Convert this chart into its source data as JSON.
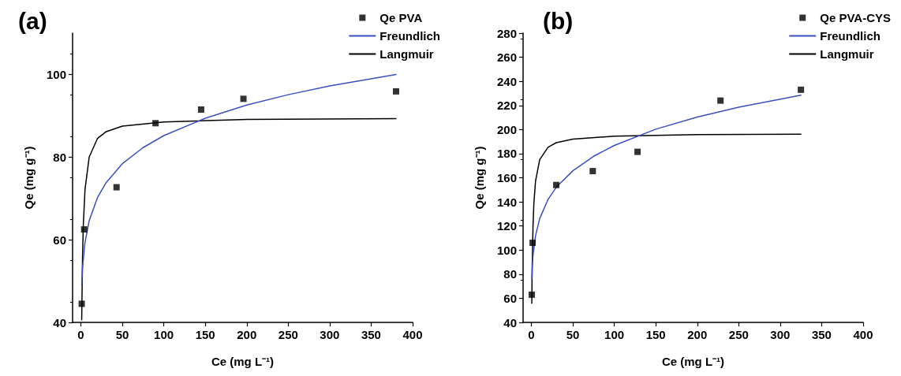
{
  "chart_data": [
    {
      "type": "scatter",
      "title": "(a)",
      "xlabel": "Ce (mg L⁻¹)",
      "ylabel": "Qe (mg g⁻¹)",
      "xlim": [
        -10,
        400
      ],
      "xticks": [
        0,
        50,
        100,
        150,
        200,
        250,
        300,
        350,
        400
      ],
      "ylim": [
        40,
        110
      ],
      "yticks": [
        40,
        60,
        80,
        100
      ],
      "grid": false,
      "legend": "top right",
      "series": [
        {
          "name": "Qe PVA",
          "marker": "square",
          "color": "#000000",
          "x": [
            1,
            4,
            43,
            90,
            145,
            196,
            380
          ],
          "values": [
            44.5,
            62.5,
            72.7,
            88.2,
            91.5,
            94.1,
            95.9
          ]
        },
        {
          "name": "Freundlich",
          "type": "line",
          "marker": "none",
          "color": "#3a4fc1",
          "x": [
            1,
            2,
            5,
            10,
            20,
            30,
            50,
            75,
            100,
            150,
            200,
            250,
            300,
            380
          ],
          "values": [
            49,
            53.3,
            59.4,
            64.6,
            70.2,
            73.7,
            78.4,
            82.3,
            85.2,
            89.4,
            92.6,
            95.1,
            97.2,
            100.0
          ]
        },
        {
          "name": "Langmuir",
          "type": "line",
          "marker": "none",
          "color": "#000000",
          "x": [
            1,
            2,
            3,
            5,
            10,
            20,
            30,
            50,
            100,
            200,
            380
          ],
          "values": [
            40.6,
            55.9,
            63.9,
            72.2,
            80.0,
            84.5,
            86.1,
            87.5,
            88.5,
            89.1,
            89.3
          ]
        }
      ]
    },
    {
      "type": "scatter",
      "title": "(b)",
      "xlabel": "Ce (mg L⁻¹)",
      "ylabel": "Qe (mg g⁻¹)",
      "xlim": [
        -10,
        400
      ],
      "xticks": [
        0,
        50,
        100,
        150,
        200,
        250,
        300,
        350,
        400
      ],
      "ylim": [
        40,
        280
      ],
      "yticks": [
        40,
        60,
        80,
        100,
        120,
        140,
        160,
        180,
        200,
        220,
        240,
        260,
        280
      ],
      "grid": false,
      "legend": "top right",
      "series": [
        {
          "name": "Qe PVA-CYS",
          "marker": "square",
          "color": "#000000",
          "x": [
            0.5,
            1.5,
            30,
            74,
            128,
            228,
            325
          ],
          "values": [
            63,
            106,
            154,
            165.5,
            181.5,
            224,
            233
          ]
        },
        {
          "name": "Freundlich",
          "type": "line",
          "marker": "none",
          "color": "#3a4fc1",
          "x": [
            0.5,
            1,
            2,
            5,
            10,
            20,
            30,
            50,
            75,
            100,
            150,
            200,
            250,
            325
          ],
          "values": [
            75.5,
            85,
            95.7,
            111.9,
            126.1,
            141.9,
            152.1,
            165.8,
            177.8,
            186.8,
            200.3,
            210.3,
            218.5,
            228.5
          ]
        },
        {
          "name": "Langmuir",
          "type": "line",
          "marker": "none",
          "color": "#000000",
          "x": [
            0.5,
            1,
            2,
            3,
            5,
            10,
            20,
            30,
            50,
            100,
            200,
            325
          ],
          "values": [
            55.8,
            86.9,
            120.6,
            138.6,
            157.2,
            175,
            185.3,
            189.1,
            192.1,
            194.5,
            195.8,
            196.2
          ]
        }
      ]
    }
  ]
}
